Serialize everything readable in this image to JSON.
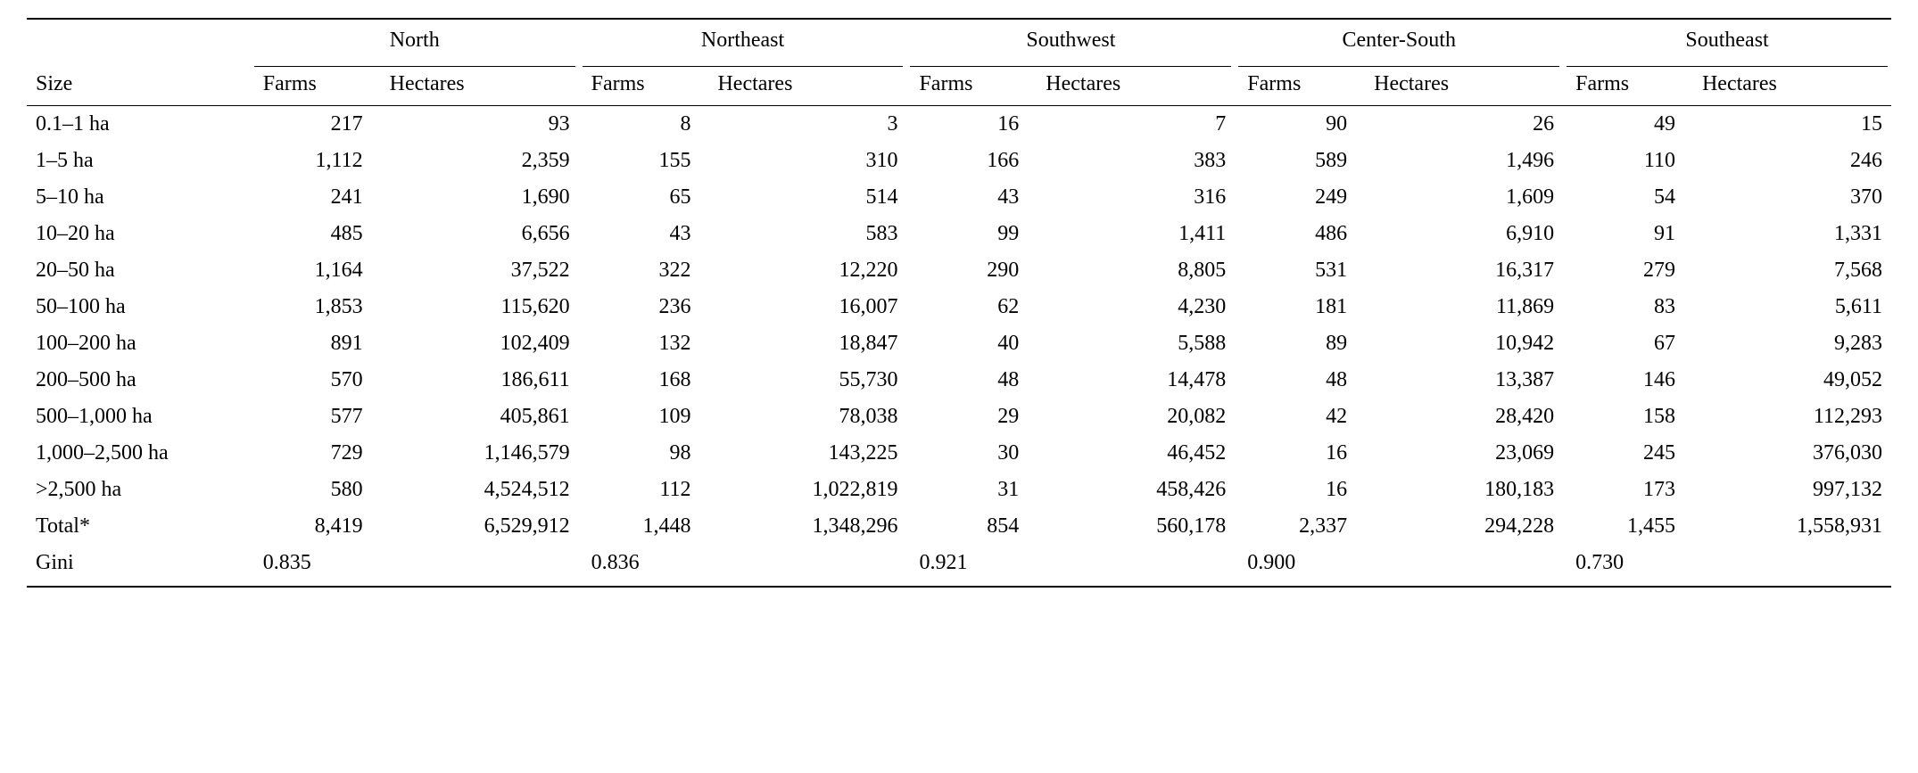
{
  "table": {
    "type": "table",
    "background_color": "#ffffff",
    "text_color": "#000000",
    "font_family": "Georgia, serif",
    "fontsize_pt": 18,
    "rule_color": "#000000",
    "size_header": "Size",
    "regions": [
      {
        "name": "North",
        "sub": [
          "Farms",
          "Hectares"
        ]
      },
      {
        "name": "Northeast",
        "sub": [
          "Farms",
          "Hectares"
        ]
      },
      {
        "name": "Southwest",
        "sub": [
          "Farms",
          "Hectares"
        ]
      },
      {
        "name": "Center-South",
        "sub": [
          "Farms",
          "Hectares"
        ]
      },
      {
        "name": "Southeast",
        "sub": [
          "Farms",
          "Hectares"
        ]
      }
    ],
    "rows": [
      {
        "size": "0.1–1 ha",
        "v": [
          "217",
          "93",
          "8",
          "3",
          "16",
          "7",
          "90",
          "26",
          "49",
          "15"
        ]
      },
      {
        "size": "1–5 ha",
        "v": [
          "1,112",
          "2,359",
          "155",
          "310",
          "166",
          "383",
          "589",
          "1,496",
          "110",
          "246"
        ]
      },
      {
        "size": "5–10 ha",
        "v": [
          "241",
          "1,690",
          "65",
          "514",
          "43",
          "316",
          "249",
          "1,609",
          "54",
          "370"
        ]
      },
      {
        "size": "10–20 ha",
        "v": [
          "485",
          "6,656",
          "43",
          "583",
          "99",
          "1,411",
          "486",
          "6,910",
          "91",
          "1,331"
        ]
      },
      {
        "size": "20–50 ha",
        "v": [
          "1,164",
          "37,522",
          "322",
          "12,220",
          "290",
          "8,805",
          "531",
          "16,317",
          "279",
          "7,568"
        ]
      },
      {
        "size": "50–100 ha",
        "v": [
          "1,853",
          "115,620",
          "236",
          "16,007",
          "62",
          "4,230",
          "181",
          "11,869",
          "83",
          "5,611"
        ]
      },
      {
        "size": "100–200 ha",
        "v": [
          "891",
          "102,409",
          "132",
          "18,847",
          "40",
          "5,588",
          "89",
          "10,942",
          "67",
          "9,283"
        ]
      },
      {
        "size": "200–500 ha",
        "v": [
          "570",
          "186,611",
          "168",
          "55,730",
          "48",
          "14,478",
          "48",
          "13,387",
          "146",
          "49,052"
        ]
      },
      {
        "size": "500–1,000 ha",
        "v": [
          "577",
          "405,861",
          "109",
          "78,038",
          "29",
          "20,082",
          "42",
          "28,420",
          "158",
          "112,293"
        ]
      },
      {
        "size": "1,000–2,500 ha",
        "v": [
          "729",
          "1,146,579",
          "98",
          "143,225",
          "30",
          "46,452",
          "16",
          "23,069",
          "245",
          "376,030"
        ]
      },
      {
        "size": ">2,500 ha",
        "v": [
          "580",
          "4,524,512",
          "112",
          "1,022,819",
          "31",
          "458,426",
          "16",
          "180,183",
          "173",
          "997,132"
        ]
      },
      {
        "size": "Total*",
        "v": [
          "8,419",
          "6,529,912",
          "1,448",
          "1,348,296",
          "854",
          "560,178",
          "2,337",
          "294,228",
          "1,455",
          "1,558,931"
        ]
      }
    ],
    "gini_label": "Gini",
    "gini": [
      "0.835",
      "0.836",
      "0.921",
      "0.900",
      "0.730"
    ]
  }
}
